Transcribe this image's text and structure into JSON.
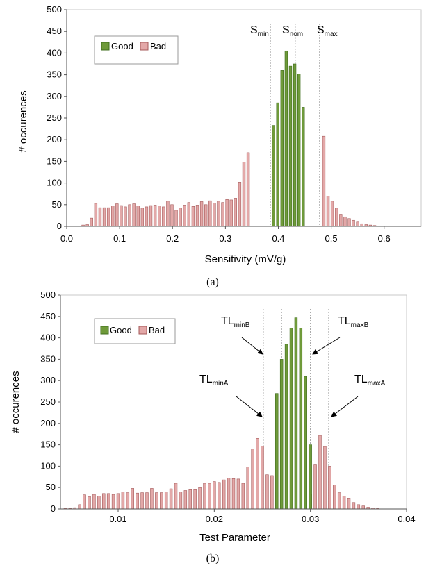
{
  "colors": {
    "good": "#6f9a3a",
    "good_stroke": "#3f6d1c",
    "bad": "#e3a8a8",
    "bad_stroke": "#a45a5a"
  },
  "chart_data": [
    {
      "type": "bar",
      "panel_label": "(a)",
      "xlabel": "Sensitivity (mV/g)",
      "ylabel": "# occurences",
      "xlim": [
        0.0,
        0.67
      ],
      "ylim": [
        0,
        500
      ],
      "xticks": [
        "0.0",
        "0.1",
        "0.2",
        "0.3",
        "0.4",
        "0.5",
        "0.6"
      ],
      "yticks": [
        "0",
        "50",
        "100",
        "150",
        "200",
        "250",
        "300",
        "350",
        "400",
        "450",
        "500"
      ],
      "legend": {
        "position": "top-left",
        "entries": [
          "Good",
          "Bad"
        ]
      },
      "grid": false,
      "bin_width": 0.008,
      "thresholds": [
        {
          "main": "S",
          "sub": "min",
          "x": 0.385
        },
        {
          "main": "S",
          "sub": "nom",
          "x": 0.432
        },
        {
          "main": "S",
          "sub": "max",
          "x": 0.478
        }
      ],
      "series": [
        {
          "name": "Bad",
          "x": [
            0.007,
            0.015,
            0.023,
            0.031,
            0.039,
            0.047,
            0.055,
            0.063,
            0.071,
            0.079,
            0.087,
            0.095,
            0.103,
            0.111,
            0.119,
            0.127,
            0.135,
            0.143,
            0.151,
            0.159,
            0.167,
            0.175,
            0.183,
            0.191,
            0.199,
            0.207,
            0.215,
            0.223,
            0.231,
            0.239,
            0.247,
            0.255,
            0.263,
            0.271,
            0.279,
            0.287,
            0.295,
            0.303,
            0.311,
            0.319,
            0.327,
            0.335,
            0.343,
            0.351,
            0.359,
            0.367,
            0.375,
            0.383,
            0.486,
            0.494,
            0.502,
            0.51,
            0.518,
            0.526,
            0.534,
            0.542,
            0.55,
            0.558,
            0.566,
            0.574,
            0.582,
            0.59
          ],
          "values": [
            1,
            1,
            1,
            3,
            4,
            19,
            53,
            43,
            43,
            43,
            47,
            52,
            48,
            45,
            50,
            52,
            47,
            42,
            45,
            48,
            49,
            47,
            45,
            58,
            50,
            37,
            42,
            49,
            55,
            46,
            49,
            57,
            50,
            59,
            54,
            58,
            55,
            62,
            61,
            65,
            102,
            148,
            170,
            0,
            0,
            0,
            0,
            0,
            208,
            70,
            58,
            42,
            28,
            22,
            18,
            14,
            10,
            6,
            4,
            3,
            2,
            1
          ]
        },
        {
          "name": "Good",
          "x": [
            0.391,
            0.399,
            0.407,
            0.415,
            0.423,
            0.431,
            0.439,
            0.447,
            0.455,
            0.463,
            0.471
          ],
          "values": [
            233,
            285,
            360,
            405,
            370,
            375,
            352,
            275,
            0,
            0,
            0
          ]
        }
      ]
    },
    {
      "type": "bar",
      "panel_label": "(b)",
      "xlabel": "Test Parameter",
      "ylabel": "# occurences",
      "xlim": [
        0.004,
        0.04
      ],
      "ylim": [
        0,
        500
      ],
      "xticks": [
        "0.01",
        "0.02",
        "0.03",
        "0.04"
      ],
      "yticks": [
        "0",
        "50",
        "100",
        "150",
        "200",
        "250",
        "300",
        "350",
        "400",
        "450",
        "500"
      ],
      "legend": {
        "position": "top-left",
        "entries": [
          "Good",
          "Bad"
        ]
      },
      "grid": false,
      "bin_width": 0.00045,
      "thresholds": [
        {
          "main": "TL",
          "sub": "minB",
          "x": 0.027
        },
        {
          "main": "TL",
          "sub": "maxB",
          "x": 0.03
        },
        {
          "main": "TL",
          "sub": "minA",
          "x": 0.0251
        },
        {
          "main": "TL",
          "sub": "maxA",
          "x": 0.0319
        }
      ],
      "series": [
        {
          "name": "Bad",
          "x": [
            0.0045,
            0.005,
            0.0055,
            0.006,
            0.0065,
            0.007,
            0.0075,
            0.008,
            0.0085,
            0.009,
            0.0095,
            0.01,
            0.0105,
            0.011,
            0.0115,
            0.012,
            0.0125,
            0.013,
            0.0135,
            0.014,
            0.0145,
            0.015,
            0.0155,
            0.016,
            0.0165,
            0.017,
            0.0175,
            0.018,
            0.0185,
            0.019,
            0.0195,
            0.02,
            0.0205,
            0.021,
            0.0215,
            0.022,
            0.0225,
            0.023,
            0.0235,
            0.024,
            0.0245,
            0.025,
            0.0255,
            0.026,
            0.0265,
            0.027,
            0.03,
            0.0305,
            0.031,
            0.0315,
            0.032,
            0.0325,
            0.033,
            0.0335,
            0.034,
            0.0345,
            0.035,
            0.0355,
            0.036,
            0.0365,
            0.037
          ],
          "values": [
            1,
            1,
            3,
            10,
            33,
            29,
            34,
            30,
            36,
            36,
            34,
            36,
            40,
            38,
            48,
            37,
            38,
            38,
            48,
            38,
            38,
            40,
            47,
            60,
            40,
            43,
            45,
            45,
            50,
            60,
            60,
            64,
            62,
            68,
            72,
            71,
            70,
            60,
            98,
            140,
            165,
            147,
            80,
            78,
            38,
            0,
            35,
            103,
            172,
            146,
            100,
            56,
            38,
            30,
            24,
            15,
            10,
            7,
            4,
            2,
            1
          ]
        },
        {
          "name": "Good",
          "x": [
            0.0265,
            0.027,
            0.0275,
            0.028,
            0.0285,
            0.029,
            0.0295,
            0.03
          ],
          "values": [
            270,
            350,
            385,
            423,
            447,
            423,
            310,
            150
          ]
        }
      ]
    }
  ]
}
